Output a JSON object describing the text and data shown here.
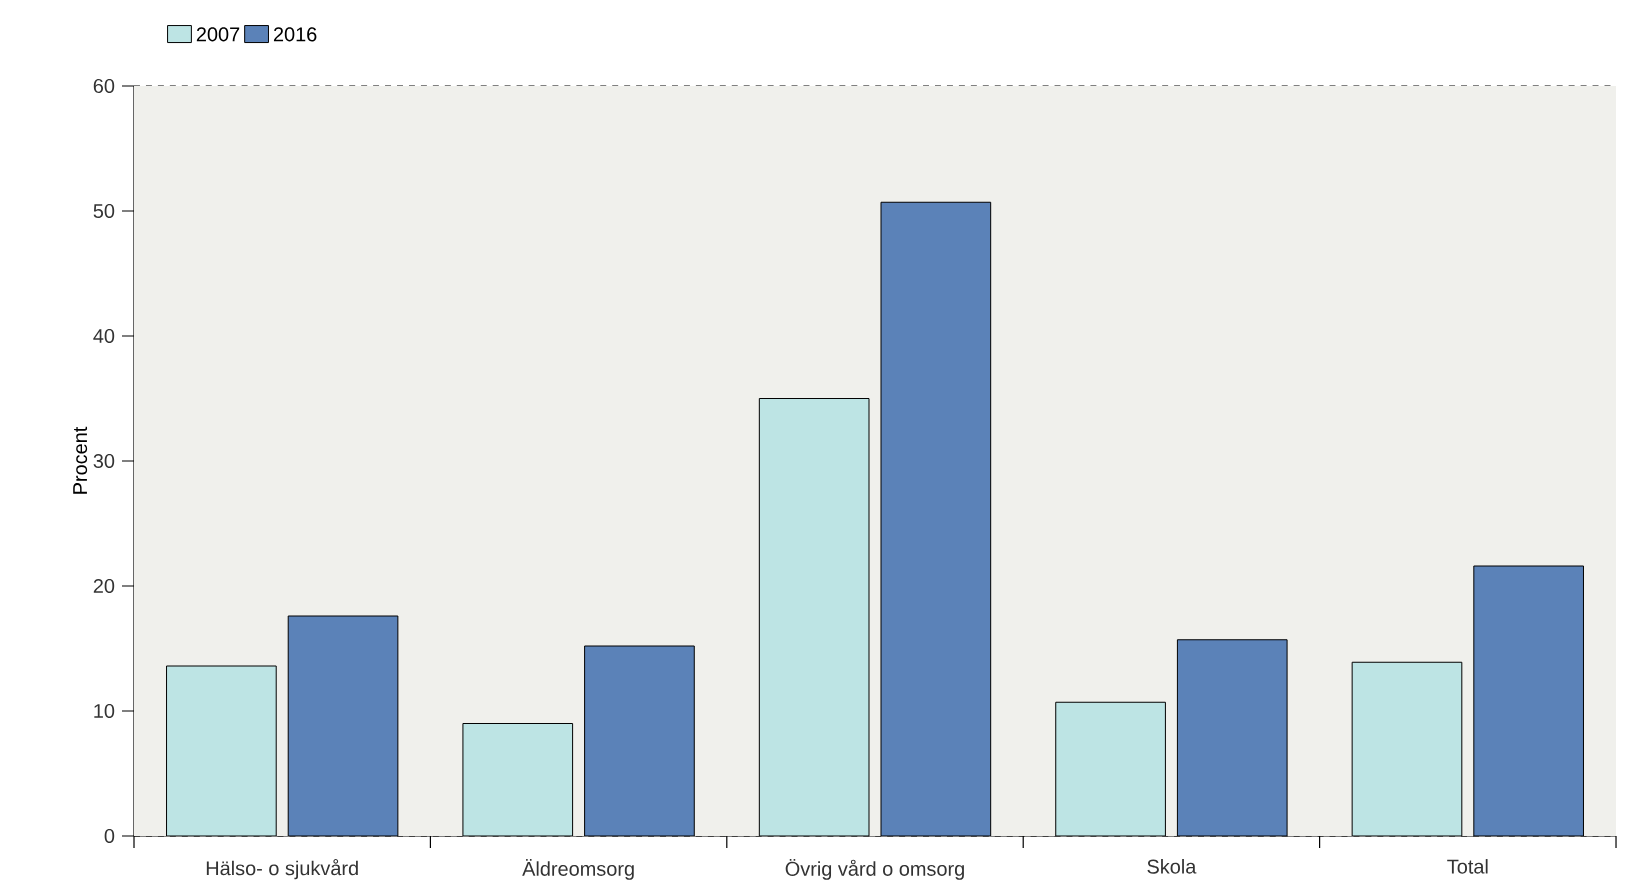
{
  "chart_data": {
    "type": "bar",
    "ylabel": "Procent",
    "categories": [
      "Hälso- o sjukvård",
      "Äldreomsorg",
      "Övrig vård o omsorg",
      "Skola",
      "Total"
    ],
    "series": [
      {
        "name": "2007",
        "color": "#bde4e4",
        "values": [
          13.6,
          9.0,
          35.0,
          10.7,
          13.9
        ]
      },
      {
        "name": "2016",
        "color": "#5b82b8",
        "values": [
          17.6,
          15.2,
          50.7,
          15.7,
          21.6
        ]
      }
    ],
    "ylim": [
      0,
      60
    ],
    "yticks": [
      0,
      10,
      20,
      30,
      40,
      50,
      60
    ],
    "grid": "y",
    "legend": "top left"
  }
}
